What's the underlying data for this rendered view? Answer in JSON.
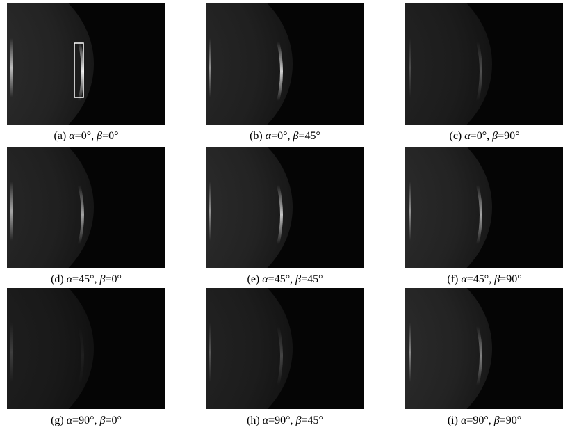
{
  "panels": [
    {
      "caption": [
        "(a) ",
        "α",
        "=0°, ",
        "β",
        "=0°"
      ]
    },
    {
      "caption": [
        "(b) ",
        "α",
        "=0°, ",
        "β",
        "=45°"
      ]
    },
    {
      "caption": [
        "(c) ",
        "α",
        "=0°, ",
        "β",
        "=90°"
      ]
    },
    {
      "caption": [
        "(d) ",
        "α",
        "=45°, ",
        "β",
        "=0°"
      ]
    },
    {
      "caption": [
        "(e) ",
        "α",
        "=45°, ",
        "β",
        "=45°"
      ]
    },
    {
      "caption": [
        "(f) ",
        "α",
        "=45°, ",
        "β",
        "=90°"
      ]
    },
    {
      "caption": [
        "(g) ",
        "α",
        "=90°, ",
        "β",
        "=0°"
      ]
    },
    {
      "caption": [
        "(h) ",
        "α",
        "=90°, ",
        "β",
        "=45°"
      ]
    },
    {
      "caption": [
        "(i) ",
        "α",
        "=90°, ",
        "β",
        "=90°"
      ]
    }
  ]
}
